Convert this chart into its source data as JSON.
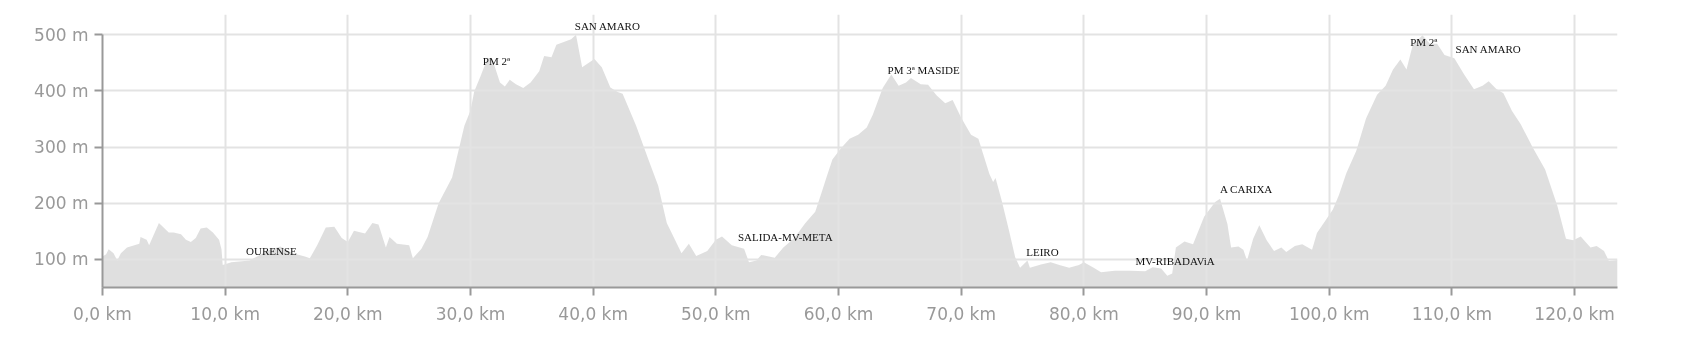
{
  "chart_data": {
    "type": "area",
    "color": "#d9d9d9",
    "x": [
      0,
      0.3,
      0.5,
      0.9,
      1.2,
      1.5,
      2,
      3,
      3.1,
      3.6,
      3.8,
      4.6,
      5.4,
      5.8,
      6.4,
      6.8,
      7.2,
      7.6,
      8,
      8.5,
      9,
      9.5,
      9.7,
      9.8,
      10.5,
      12,
      13.5,
      14.5,
      15.5,
      16.5,
      16.9,
      17.5,
      18.2,
      18.9,
      19.5,
      20,
      20.5,
      21.4,
      22,
      22.5,
      23.1,
      23.4,
      24,
      25,
      25.3,
      26,
      26.5,
      27.4,
      28.5,
      29.5,
      30,
      30.3,
      30.8,
      31.4,
      31.8,
      32.4,
      32.8,
      33.2,
      33.7,
      34.3,
      34.9,
      35.6,
      36,
      36.6,
      37,
      37.6,
      38.2,
      38.6,
      39.1,
      40.1,
      40.7,
      41.4,
      42,
      42.4,
      43.5,
      44.5,
      45.3,
      46,
      47.2,
      47.8,
      48.4,
      49.3,
      50,
      50.5,
      51.3,
      52.3,
      52.7,
      53.3,
      53.7,
      54.8,
      55.5,
      56.4,
      57.3,
      58.1,
      58.6,
      59,
      59.5,
      60.2,
      60.9,
      61.6,
      62.3,
      62.8,
      63.6,
      64.3,
      64.9,
      65.5,
      65.9,
      66.7,
      67.3,
      68,
      68.7,
      69.3,
      70,
      70.8,
      71.4,
      72.3,
      72.6,
      72.8,
      73.3,
      73.9,
      74.4,
      74.8,
      75.4,
      75.6,
      76.5,
      77.3,
      78,
      78.8,
      79.6,
      80,
      80.8,
      81.4,
      82.5,
      83.8,
      85,
      85.6,
      86.3,
      86.8,
      87.2,
      87.5,
      88.2,
      88.9,
      89.8,
      90.7,
      91.1,
      91.7,
      92,
      92.6,
      93,
      93.3,
      93.8,
      94.3,
      94.9,
      95.5,
      96.1,
      96.5,
      97.2,
      97.8,
      98.6,
      99,
      99.5,
      100.3,
      100.8,
      101.4,
      102.2,
      103,
      103.9,
      104.6,
      105.2,
      105.8,
      106.3,
      106.8,
      107.6,
      108.2,
      108.8,
      109.4,
      110.2,
      111,
      111.8,
      112.5,
      113,
      113.6,
      114.2,
      114.9,
      115.6,
      116.6,
      117.6,
      118.6,
      119.3,
      119.9,
      120.5,
      121.3,
      121.8,
      122.4,
      122.8,
      123.5
    ],
    "values": [
      105,
      109,
      118,
      111,
      98,
      111,
      121,
      128,
      140,
      135,
      125,
      165,
      148,
      148,
      145,
      135,
      131,
      138,
      155,
      157,
      148,
      135,
      118,
      90,
      95,
      98,
      116,
      123,
      111,
      105,
      102,
      125,
      157,
      158,
      138,
      131,
      151,
      146,
      165,
      162,
      121,
      140,
      128,
      125,
      102,
      119,
      140,
      200,
      246,
      338,
      365,
      399,
      425,
      459,
      455,
      415,
      408,
      420,
      412,
      405,
      415,
      435,
      462,
      460,
      482,
      487,
      492,
      500,
      442,
      457,
      442,
      406,
      398,
      395,
      338,
      278,
      231,
      165,
      111,
      128,
      106,
      115,
      135,
      141,
      125,
      119,
      95,
      98,
      108,
      103,
      121,
      138,
      165,
      185,
      218,
      245,
      278,
      298,
      315,
      322,
      335,
      358,
      405,
      429,
      409,
      415,
      423,
      412,
      411,
      392,
      378,
      384,
      352,
      322,
      315,
      252,
      238,
      245,
      205,
      151,
      104,
      85,
      98,
      85,
      91,
      95,
      90,
      85,
      90,
      95,
      85,
      77,
      80,
      80,
      79,
      86,
      84,
      71,
      75,
      121,
      132,
      127,
      176,
      202,
      208,
      163,
      121,
      123,
      117,
      98,
      137,
      161,
      134,
      115,
      121,
      113,
      124,
      127,
      117,
      147,
      163,
      189,
      215,
      254,
      293,
      351,
      393,
      409,
      438,
      456,
      438,
      481,
      499,
      484,
      484,
      464,
      458,
      429,
      403,
      409,
      417,
      404,
      396,
      364,
      341,
      299,
      260,
      195,
      137,
      134,
      141,
      121,
      124,
      115,
      97,
      99
    ],
    "xlim": [
      0,
      123.5
    ],
    "ylim": [
      50,
      500
    ],
    "xticks": [
      {
        "value": 0,
        "label": "0,0 km"
      },
      {
        "value": 10,
        "label": "10,0 km"
      },
      {
        "value": 20,
        "label": "20,0 km"
      },
      {
        "value": 30,
        "label": "30,0 km"
      },
      {
        "value": 40,
        "label": "40,0 km"
      },
      {
        "value": 50,
        "label": "50,0 km"
      },
      {
        "value": 60,
        "label": "60,0 km"
      },
      {
        "value": 70,
        "label": "70,0 km"
      },
      {
        "value": 80,
        "label": "80,0 km"
      },
      {
        "value": 90,
        "label": "90,0 km"
      },
      {
        "value": 100,
        "label": "100,0 km"
      },
      {
        "value": 110,
        "label": "110,0 km"
      },
      {
        "value": 120,
        "label": "120,0 km"
      }
    ],
    "yticks": [
      {
        "value": 100,
        "label": "100 m"
      },
      {
        "value": 200,
        "label": "200 m"
      },
      {
        "value": 300,
        "label": "300 m"
      },
      {
        "value": 400,
        "label": "400 m"
      },
      {
        "value": 500,
        "label": "500 m"
      }
    ],
    "grid": true,
    "annotations": [
      {
        "text": "OURENSE",
        "x": 11.7,
        "y": 97
      },
      {
        "text": "PM 2ª",
        "x": 31.0,
        "y": 436
      },
      {
        "text": "SAN AMARO",
        "x": 38.5,
        "y": 498
      },
      {
        "text": "SALIDA-MV-META",
        "x": 51.8,
        "y": 122
      },
      {
        "text": "PM 3ª MASIDE",
        "x": 64.0,
        "y": 419
      },
      {
        "text": "LEIRO",
        "x": 75.3,
        "y": 96
      },
      {
        "text": "MV-RIBADAViA",
        "x": 84.2,
        "y": 80
      },
      {
        "text": "A CARIXA",
        "x": 91.1,
        "y": 208
      },
      {
        "text": "PM 2ª",
        "x": 106.6,
        "y": 470
      },
      {
        "text": "SAN AMARO",
        "x": 110.3,
        "y": 457
      }
    ]
  }
}
